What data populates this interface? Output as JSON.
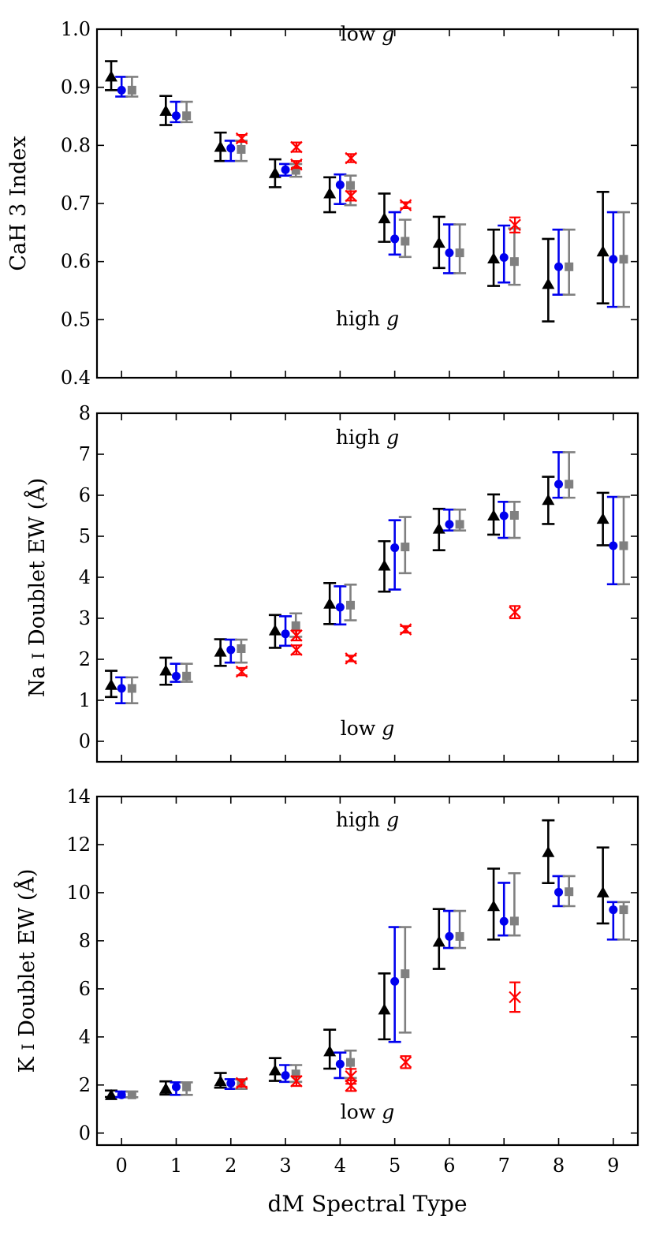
{
  "figure": {
    "xlabel": "dM Spectral Type",
    "xticks": [
      0,
      1,
      2,
      3,
      4,
      5,
      6,
      7,
      8,
      9
    ],
    "xlim": [
      -0.45,
      9.45
    ],
    "offsets": {
      "black": -0.19,
      "blue": 0.0,
      "gray": 0.19,
      "red": 0.2
    },
    "colors": {
      "black": "#000000",
      "blue": "#0000ee",
      "gray": "#808080",
      "red": "#ff0000"
    }
  },
  "chart_data": [
    {
      "type": "scatter",
      "id": "cah3",
      "ylabel": "CaH 3 Index",
      "ylim": [
        0.4,
        1.0
      ],
      "yticks": [
        0.4,
        0.5,
        0.6,
        0.7,
        0.8,
        0.9,
        1.0
      ],
      "ytick_labels": [
        "0.4",
        "0.5",
        "0.6",
        "0.7",
        "0.8",
        "0.9",
        "1.0"
      ],
      "annotation_top": {
        "text": "low ",
        "g": "g",
        "y": 0.98
      },
      "annotation_bottom": {
        "text": "high ",
        "g": "g",
        "y": 0.49
      },
      "series": [
        {
          "name": "black-triangles",
          "marker": "triangle",
          "x": [
            0,
            1,
            2,
            3,
            4,
            5,
            6,
            7,
            8,
            9
          ],
          "y": [
            0.918,
            0.859,
            0.797,
            0.752,
            0.717,
            0.674,
            0.632,
            0.605,
            0.561,
            0.617
          ],
          "lo": [
            0.895,
            0.835,
            0.773,
            0.728,
            0.685,
            0.634,
            0.589,
            0.558,
            0.497,
            0.528
          ],
          "hi": [
            0.945,
            0.885,
            0.822,
            0.776,
            0.745,
            0.717,
            0.677,
            0.655,
            0.639,
            0.72
          ]
        },
        {
          "name": "blue-circles",
          "marker": "circle",
          "x": [
            0,
            1,
            2,
            3,
            4,
            5,
            6,
            7,
            8,
            9
          ],
          "y": [
            0.895,
            0.851,
            0.795,
            0.758,
            0.732,
            0.639,
            0.615,
            0.607,
            0.591,
            0.604
          ],
          "lo": [
            0.884,
            0.84,
            0.773,
            0.748,
            0.699,
            0.612,
            0.58,
            0.564,
            0.543,
            0.522
          ],
          "hi": [
            0.918,
            0.875,
            0.808,
            0.768,
            0.75,
            0.685,
            0.664,
            0.662,
            0.655,
            0.685
          ]
        },
        {
          "name": "gray-squares",
          "marker": "square",
          "x": [
            0,
            1,
            2,
            3,
            4,
            5,
            6,
            7,
            8,
            9
          ],
          "y": [
            0.895,
            0.851,
            0.793,
            0.757,
            0.731,
            0.635,
            0.615,
            0.6,
            0.591,
            0.604
          ],
          "lo": [
            0.884,
            0.84,
            0.773,
            0.746,
            0.697,
            0.608,
            0.58,
            0.56,
            0.543,
            0.522
          ],
          "hi": [
            0.918,
            0.875,
            0.808,
            0.768,
            0.748,
            0.672,
            0.664,
            0.657,
            0.655,
            0.685
          ]
        },
        {
          "name": "red-crosses",
          "marker": "x",
          "x": [
            2,
            3,
            3,
            4,
            4,
            5,
            7
          ],
          "y": [
            0.812,
            0.797,
            0.767,
            0.778,
            0.713,
            0.697,
            0.663
          ],
          "lo": [
            0.806,
            0.789,
            0.761,
            0.771,
            0.705,
            0.692,
            0.65
          ],
          "hi": [
            0.818,
            0.805,
            0.773,
            0.785,
            0.721,
            0.702,
            0.676
          ]
        }
      ]
    },
    {
      "type": "scatter",
      "id": "nai",
      "ylabel_parts": [
        "Na ",
        "I",
        " Doublet EW (Å)"
      ],
      "ylim": [
        -0.5,
        8.0
      ],
      "yticks": [
        0,
        1,
        2,
        3,
        4,
        5,
        6,
        7,
        8
      ],
      "ytick_labels": [
        "0",
        "1",
        "2",
        "3",
        "4",
        "5",
        "6",
        "7",
        "8"
      ],
      "annotation_top": {
        "text": "high ",
        "g": "g",
        "y": 7.25
      },
      "annotation_bottom": {
        "text": "low ",
        "g": "g",
        "y": 0.15
      },
      "series": [
        {
          "name": "black-triangles",
          "marker": "triangle",
          "x": [
            0,
            1,
            2,
            3,
            4,
            5,
            6,
            7,
            8,
            9
          ],
          "y": [
            1.37,
            1.72,
            2.18,
            2.7,
            3.35,
            4.28,
            5.18,
            5.5,
            5.88,
            5.42
          ],
          "lo": [
            1.08,
            1.38,
            1.84,
            2.28,
            2.86,
            3.65,
            4.66,
            5.04,
            5.3,
            4.78
          ],
          "hi": [
            1.72,
            2.04,
            2.49,
            3.08,
            3.86,
            4.88,
            5.67,
            6.02,
            6.45,
            6.06
          ]
        },
        {
          "name": "blue-circles",
          "marker": "circle",
          "x": [
            0,
            1,
            2,
            3,
            4,
            5,
            6,
            7,
            8,
            9
          ],
          "y": [
            1.29,
            1.59,
            2.23,
            2.62,
            3.27,
            4.72,
            5.29,
            5.5,
            6.27,
            4.77
          ],
          "lo": [
            0.93,
            1.45,
            1.92,
            2.33,
            2.85,
            3.7,
            5.14,
            4.96,
            5.94,
            3.83
          ],
          "hi": [
            1.56,
            1.89,
            2.48,
            3.05,
            3.78,
            5.39,
            5.65,
            5.84,
            7.05,
            5.96
          ]
        },
        {
          "name": "gray-squares",
          "marker": "square",
          "x": [
            0,
            1,
            2,
            3,
            4,
            5,
            6,
            7,
            8,
            9
          ],
          "y": [
            1.29,
            1.59,
            2.26,
            2.82,
            3.32,
            4.74,
            5.29,
            5.51,
            6.27,
            4.77
          ],
          "lo": [
            0.93,
            1.45,
            1.92,
            2.55,
            2.95,
            4.1,
            5.14,
            4.96,
            5.94,
            3.83
          ],
          "hi": [
            1.56,
            1.89,
            2.48,
            3.12,
            3.82,
            5.47,
            5.65,
            5.84,
            7.05,
            5.96
          ]
        },
        {
          "name": "red-crosses",
          "marker": "x",
          "x": [
            2,
            3,
            3,
            4,
            5,
            7
          ],
          "y": [
            1.7,
            2.58,
            2.23,
            2.02,
            2.73,
            3.15
          ],
          "lo": [
            1.61,
            2.46,
            2.12,
            1.95,
            2.65,
            3.0
          ],
          "hi": [
            1.79,
            2.7,
            2.34,
            2.09,
            2.81,
            3.3
          ]
        }
      ]
    },
    {
      "type": "scatter",
      "id": "ki",
      "ylabel_parts": [
        "K ",
        "I",
        " Doublet EW (Å)"
      ],
      "ylim": [
        -0.5,
        14.0
      ],
      "yticks": [
        0,
        2,
        4,
        6,
        8,
        10,
        12,
        14
      ],
      "ytick_labels": [
        "0",
        "2",
        "4",
        "6",
        "8",
        "10",
        "12",
        "14"
      ],
      "annotation_top": {
        "text": "high ",
        "g": "g",
        "y": 12.75
      },
      "annotation_bottom": {
        "text": "low ",
        "g": "g",
        "y": 0.6
      },
      "series": [
        {
          "name": "black-triangles",
          "marker": "triangle",
          "x": [
            0,
            1,
            2,
            3,
            4,
            5,
            6,
            7,
            8,
            9
          ],
          "y": [
            1.57,
            1.84,
            2.15,
            2.6,
            3.39,
            5.13,
            7.95,
            9.43,
            11.68,
            10.0
          ],
          "lo": [
            1.5,
            1.6,
            1.89,
            2.17,
            2.68,
            3.9,
            6.83,
            8.05,
            10.4,
            8.72
          ],
          "hi": [
            1.77,
            2.15,
            2.5,
            3.12,
            4.3,
            6.64,
            9.32,
            11.0,
            13.01,
            11.88
          ]
        },
        {
          "name": "blue-circles",
          "marker": "circle",
          "x": [
            0,
            1,
            2,
            3,
            4,
            5,
            6,
            7,
            8,
            9
          ],
          "y": [
            1.59,
            1.92,
            2.07,
            2.4,
            2.87,
            6.31,
            8.18,
            8.81,
            10.02,
            9.29
          ],
          "lo": [
            1.49,
            1.59,
            1.84,
            2.13,
            2.29,
            3.79,
            7.7,
            8.22,
            9.44,
            8.05
          ],
          "hi": [
            1.73,
            2.11,
            2.24,
            2.83,
            3.35,
            8.57,
            9.24,
            10.41,
            10.69,
            9.61
          ]
        },
        {
          "name": "gray-squares",
          "marker": "square",
          "x": [
            0,
            1,
            2,
            3,
            4,
            5,
            6,
            7,
            8,
            9
          ],
          "y": [
            1.59,
            1.92,
            2.09,
            2.46,
            2.94,
            6.63,
            8.18,
            8.82,
            10.04,
            9.29
          ],
          "lo": [
            1.49,
            1.59,
            1.84,
            2.13,
            2.29,
            4.18,
            7.7,
            8.22,
            9.44,
            8.05
          ],
          "hi": [
            1.73,
            2.11,
            2.24,
            2.83,
            3.43,
            8.57,
            9.24,
            10.81,
            10.69,
            9.61
          ]
        },
        {
          "name": "red-crosses",
          "marker": "x",
          "x": [
            2,
            3,
            4,
            4,
            5,
            7
          ],
          "y": [
            2.08,
            2.16,
            2.36,
            1.97,
            2.95,
            5.65
          ],
          "lo": [
            1.93,
            1.96,
            2.05,
            1.75,
            2.7,
            5.04
          ],
          "hi": [
            2.23,
            2.36,
            2.67,
            2.19,
            3.2,
            6.27
          ]
        }
      ]
    }
  ]
}
